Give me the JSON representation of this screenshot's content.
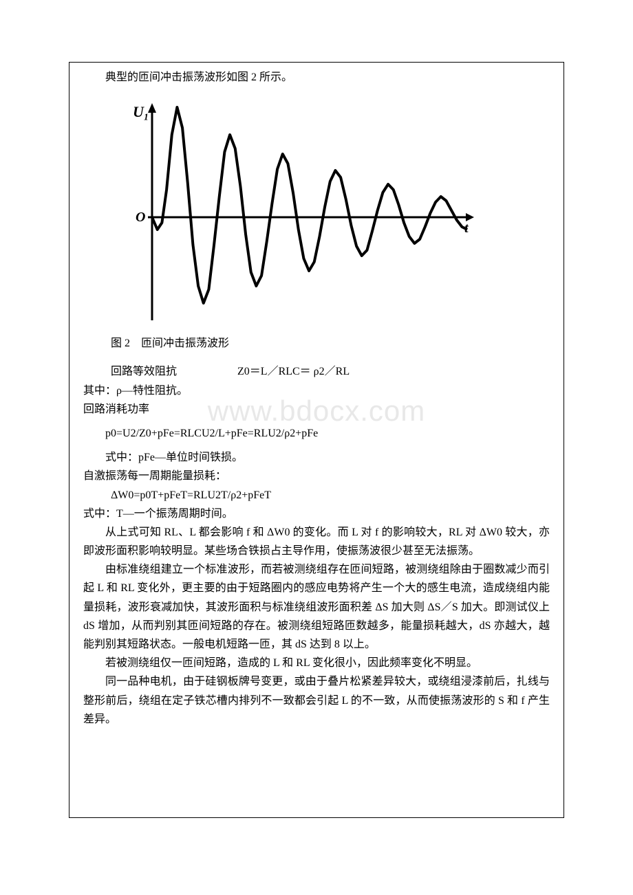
{
  "intro_line": "典型的匝间冲击振荡波形如图 2 所示。",
  "chart": {
    "type": "line",
    "y_label": "U₁",
    "origin_label": "O",
    "x_end_label": "t",
    "background_color": "#ffffff",
    "axis_color": "#000000",
    "line_color": "#000000",
    "line_width": 4,
    "axis_width": 3,
    "x_range": [
      0,
      480
    ],
    "y_range": [
      -130,
      170
    ],
    "data_points": [
      [
        0,
        0
      ],
      [
        8,
        -18
      ],
      [
        15,
        -8
      ],
      [
        22,
        40
      ],
      [
        30,
        120
      ],
      [
        38,
        160
      ],
      [
        46,
        130
      ],
      [
        54,
        50
      ],
      [
        62,
        -40
      ],
      [
        70,
        -100
      ],
      [
        78,
        -125
      ],
      [
        86,
        -105
      ],
      [
        94,
        -40
      ],
      [
        102,
        30
      ],
      [
        110,
        95
      ],
      [
        118,
        120
      ],
      [
        126,
        100
      ],
      [
        134,
        45
      ],
      [
        142,
        -25
      ],
      [
        150,
        -80
      ],
      [
        158,
        -100
      ],
      [
        166,
        -85
      ],
      [
        174,
        -35
      ],
      [
        182,
        20
      ],
      [
        190,
        70
      ],
      [
        198,
        92
      ],
      [
        206,
        78
      ],
      [
        214,
        35
      ],
      [
        222,
        -18
      ],
      [
        230,
        -60
      ],
      [
        238,
        -78
      ],
      [
        246,
        -65
      ],
      [
        254,
        -28
      ],
      [
        262,
        15
      ],
      [
        270,
        52
      ],
      [
        278,
        68
      ],
      [
        286,
        58
      ],
      [
        294,
        26
      ],
      [
        302,
        -12
      ],
      [
        310,
        -42
      ],
      [
        318,
        -56
      ],
      [
        326,
        -48
      ],
      [
        334,
        -20
      ],
      [
        342,
        10
      ],
      [
        350,
        36
      ],
      [
        358,
        48
      ],
      [
        366,
        40
      ],
      [
        374,
        18
      ],
      [
        382,
        -8
      ],
      [
        390,
        -28
      ],
      [
        398,
        -38
      ],
      [
        406,
        -32
      ],
      [
        414,
        -14
      ],
      [
        422,
        6
      ],
      [
        430,
        22
      ],
      [
        438,
        30
      ],
      [
        446,
        24
      ],
      [
        454,
        10
      ],
      [
        462,
        -4
      ],
      [
        470,
        -14
      ],
      [
        478,
        -18
      ]
    ]
  },
  "caption": "图 2　匝间冲击振荡波形",
  "eq1_label": "回路等效阻抗",
  "eq1_formula": "Z0＝L／RLC＝ ρ2／RL",
  "eq1_note1": "其中：ρ—特性阻抗。",
  "eq1_note2": "回路消耗功率",
  "watermark": "www.bdocx.com",
  "eq2": "p0=U2/Z0+pFe=RLCU2/L+pFe=RLU2/ρ2+pFe",
  "eq2_note": "式中：pFe—单位时间铁损。",
  "eq3_label": "自激振荡每一周期能量损耗：",
  "eq3": "ΔW0=p0T+pFeT=RLU2T/ρ2+pFeT",
  "eq3_note": "式中：T—一个振荡周期时间。",
  "para1": "从上式可知 RL、L 都会影响 f 和 ΔW0 的变化。而 L 对 f 的影响较大，RL 对 ΔW0 较大，亦即波形面积影响较明显。某些场合铁损占主导作用，使振荡波很少甚至无法振荡。",
  "para2": "由标准绕组建立一个标准波形，而若被测绕组存在匝间短路，被测绕组除由于圈数减少而引起 L 和 RL 变化外，更主要的由于短路圈内的感应电势将产生一个大的感生电流，造成绕组内能量损耗，波形衰减加快，其波形面积与标准绕组波形面积差 ΔS 加大则 ΔS／S 加大。即测试仪上 dS 增加，从而判别其匝间短路的存在。被测绕组短路匝数越多，能量损耗越大，dS 亦越大，越能判别其短路状态。一般电机短路一匝，其 dS 达到 8 以上。",
  "para3": "若被测绕组仅一匝间短路，造成的 L 和 RL 变化很小，因此频率变化不明显。",
  "para4": "同一品种电机，由于硅钢板牌号变更，或由于叠片松紧差异较大，或绕组浸漆前后，扎线与整形前后，绕组在定子铁芯槽内排列不一致都会引起 L 的不一致，从而使振荡波形的 S 和 f 产生差异。"
}
